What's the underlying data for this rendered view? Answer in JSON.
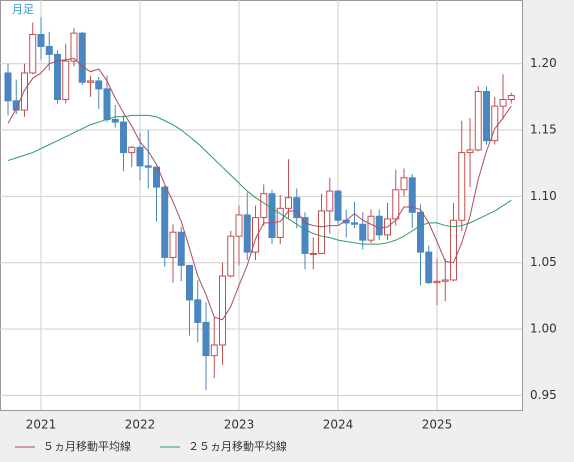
{
  "chart_data": {
    "type": "candlestick",
    "period_label": "月足",
    "categories": [
      null,
      null,
      null,
      null,
      "2021",
      null,
      null,
      null,
      null,
      null,
      null,
      null,
      null,
      null,
      null,
      null,
      "2022",
      null,
      null,
      null,
      null,
      null,
      null,
      null,
      null,
      null,
      null,
      null,
      "2023",
      null,
      null,
      null,
      null,
      null,
      null,
      null,
      null,
      null,
      null,
      null,
      "2024",
      null,
      null,
      null,
      null,
      null,
      null,
      null,
      null,
      null,
      null,
      null,
      "2025",
      null,
      null,
      null,
      null,
      null,
      null,
      null,
      null,
      null
    ],
    "open": [
      1.193,
      1.172,
      1.165,
      1.193,
      1.222,
      1.213,
      1.207,
      1.173,
      1.202,
      1.223,
      1.186,
      1.187,
      1.181,
      1.158,
      1.156,
      1.133,
      1.137,
      1.123,
      1.122,
      1.107,
      1.054,
      1.073,
      1.048,
      1.022,
      1.005,
      0.98,
      0.988,
      1.04,
      1.07,
      1.086,
      1.058,
      1.084,
      1.102,
      1.069,
      1.091,
      1.099,
      1.084,
      1.057,
      1.057,
      1.089,
      1.104,
      1.082,
      1.08,
      1.079,
      1.067,
      1.085,
      1.071,
      1.083,
      1.105,
      1.114,
      1.088,
      1.058,
      1.035,
      1.036,
      1.037,
      1.082,
      1.133,
      1.135,
      1.179,
      1.142,
      1.168,
      1.173
    ],
    "high": [
      1.2,
      1.188,
      1.2,
      1.231,
      1.235,
      1.224,
      1.21,
      1.215,
      1.227,
      1.224,
      1.191,
      1.19,
      1.191,
      1.169,
      1.161,
      1.138,
      1.148,
      1.15,
      1.119,
      1.108,
      1.079,
      1.077,
      1.048,
      1.037,
      1.02,
      1.009,
      1.05,
      1.074,
      1.093,
      1.103,
      1.093,
      1.109,
      1.105,
      1.101,
      1.128,
      1.106,
      1.088,
      1.069,
      1.102,
      1.114,
      1.105,
      1.09,
      1.096,
      1.088,
      1.09,
      1.09,
      1.095,
      1.12,
      1.121,
      1.117,
      1.094,
      1.063,
      1.053,
      1.053,
      1.095,
      1.157,
      1.159,
      1.183,
      1.183,
      1.175,
      1.192,
      1.178
    ],
    "low": [
      1.161,
      1.162,
      1.16,
      1.192,
      1.203,
      1.195,
      1.17,
      1.17,
      1.198,
      1.184,
      1.175,
      1.166,
      1.156,
      1.152,
      1.119,
      1.122,
      1.112,
      1.106,
      1.081,
      1.047,
      1.035,
      1.036,
      0.995,
      0.99,
      0.954,
      0.963,
      0.973,
      1.039,
      1.048,
      1.052,
      1.052,
      1.078,
      1.064,
      1.064,
      1.083,
      1.076,
      1.045,
      1.045,
      1.057,
      1.072,
      1.079,
      1.069,
      1.076,
      1.06,
      1.065,
      1.067,
      1.067,
      1.078,
      1.1,
      1.076,
      1.033,
      1.034,
      1.018,
      1.021,
      1.036,
      1.074,
      1.107,
      1.134,
      1.139,
      1.139,
      1.158,
      1.17
    ],
    "close": [
      1.172,
      1.165,
      1.193,
      1.222,
      1.213,
      1.207,
      1.173,
      1.202,
      1.223,
      1.186,
      1.187,
      1.181,
      1.158,
      1.156,
      1.133,
      1.137,
      1.123,
      1.122,
      1.107,
      1.054,
      1.073,
      1.048,
      1.022,
      1.005,
      0.98,
      0.988,
      1.04,
      1.07,
      1.086,
      1.058,
      1.084,
      1.102,
      1.069,
      1.091,
      1.099,
      1.084,
      1.057,
      1.057,
      1.089,
      1.104,
      1.082,
      1.08,
      1.079,
      1.067,
      1.085,
      1.071,
      1.083,
      1.105,
      1.114,
      1.088,
      1.058,
      1.035,
      1.036,
      1.037,
      1.082,
      1.133,
      1.135,
      1.179,
      1.142,
      1.168,
      1.173,
      1.176
    ],
    "up_color": "#c05050",
    "down_color": "#4a86c0",
    "series": [
      {
        "name": "５ヵ月移動平均線",
        "color": "#b04a5a",
        "values": [
          1.155,
          1.166,
          1.18,
          1.189,
          1.193,
          1.2,
          1.202,
          1.203,
          1.204,
          1.198,
          1.194,
          1.196,
          1.187,
          1.174,
          1.163,
          1.153,
          1.141,
          1.134,
          1.124,
          1.109,
          1.096,
          1.081,
          1.061,
          1.04,
          1.026,
          1.009,
          1.007,
          1.017,
          1.033,
          1.048,
          1.068,
          1.08,
          1.08,
          1.081,
          1.089,
          1.089,
          1.08,
          1.078,
          1.077,
          1.078,
          1.078,
          1.082,
          1.087,
          1.082,
          1.079,
          1.076,
          1.077,
          1.082,
          1.092,
          1.092,
          1.09,
          1.08,
          1.066,
          1.051,
          1.05,
          1.065,
          1.085,
          1.113,
          1.134,
          1.151,
          1.159,
          1.168
        ]
      },
      {
        "name": "２５ヵ月移動平均線",
        "color": "#2a9a6a",
        "values": [
          1.127,
          1.129,
          1.131,
          1.133,
          1.136,
          1.139,
          1.142,
          1.145,
          1.148,
          1.151,
          1.154,
          1.156,
          1.158,
          1.16,
          1.16,
          1.161,
          1.161,
          1.161,
          1.16,
          1.157,
          1.154,
          1.15,
          1.145,
          1.14,
          1.134,
          1.128,
          1.122,
          1.116,
          1.11,
          1.104,
          1.099,
          1.095,
          1.091,
          1.087,
          1.083,
          1.079,
          1.075,
          1.072,
          1.07,
          1.069,
          1.067,
          1.066,
          1.065,
          1.064,
          1.064,
          1.064,
          1.065,
          1.067,
          1.07,
          1.074,
          1.078,
          1.08,
          1.08,
          1.078,
          1.077,
          1.078,
          1.08,
          1.083,
          1.086,
          1.089,
          1.093,
          1.097
        ]
      }
    ],
    "ylim": [
      0.939,
      1.248
    ],
    "yticks": [
      0.95,
      1.0,
      1.05,
      1.1,
      1.15,
      1.2
    ],
    "ytick_labels": [
      "0.95",
      "1.00",
      "1.05",
      "1.10",
      "1.15",
      "1.20"
    ],
    "grid": true
  }
}
